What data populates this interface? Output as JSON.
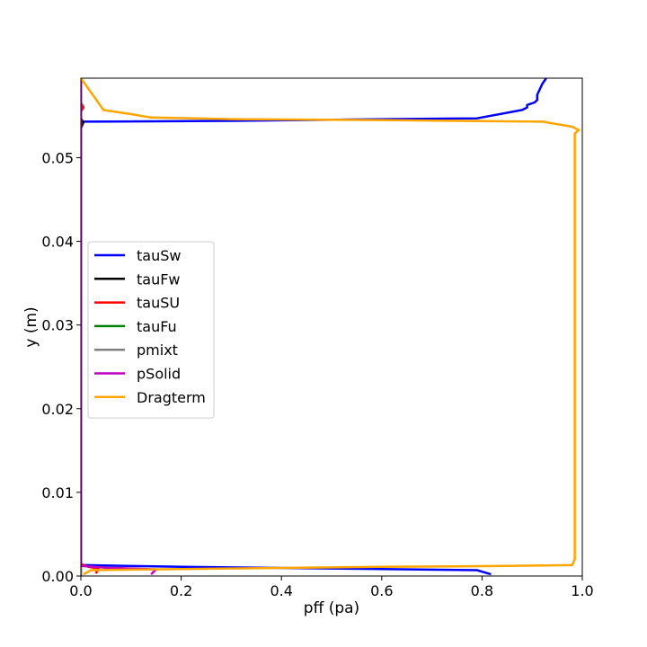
{
  "chart_data": {
    "type": "line",
    "title": "",
    "xlabel": "pff (pa)",
    "ylabel": "y (m)",
    "xlim": [
      0.0,
      1.0
    ],
    "ylim": [
      0.0,
      0.0595
    ],
    "x_ticks": [
      "0.0",
      "0.2",
      "0.4",
      "0.6",
      "0.8",
      "1.0"
    ],
    "x_tick_values": [
      0.0,
      0.2,
      0.4,
      0.6,
      0.8,
      1.0
    ],
    "y_ticks": [
      "0.00",
      "0.01",
      "0.02",
      "0.03",
      "0.04",
      "0.05"
    ],
    "y_tick_values": [
      0.0,
      0.01,
      0.02,
      0.03,
      0.04,
      0.05
    ],
    "grid": false,
    "legend_position": "center-left",
    "series": [
      {
        "name": "tauSw",
        "color": "#0000ff",
        "points": [
          [
            0.818,
            0.0002
          ],
          [
            0.79,
            0.0007
          ],
          [
            0.5,
            0.0009
          ],
          [
            0.2,
            0.0011
          ],
          [
            0.01,
            0.0013
          ],
          [
            0.0,
            0.0013
          ],
          [
            0.0,
            0.0543
          ],
          [
            0.3,
            0.0544
          ],
          [
            0.6,
            0.0546
          ],
          [
            0.79,
            0.0547
          ],
          [
            0.88,
            0.0557
          ],
          [
            0.89,
            0.056
          ],
          [
            0.89,
            0.0563
          ],
          [
            0.905,
            0.0566
          ],
          [
            0.91,
            0.0569
          ],
          [
            0.91,
            0.0575
          ],
          [
            0.92,
            0.0588
          ],
          [
            0.928,
            0.0595
          ]
        ]
      },
      {
        "name": "tauFw",
        "color": "#000000",
        "points": [
          [
            0.0,
            0.0013
          ],
          [
            0.0,
            0.0535
          ],
          [
            0.005,
            0.0542
          ],
          [
            0.0,
            0.0547
          ],
          [
            0.0,
            0.0595
          ]
        ]
      },
      {
        "name": "tauSU",
        "color": "#ff0000",
        "points": [
          [
            0.03,
            0.0003
          ],
          [
            0.035,
            0.0009
          ],
          [
            0.015,
            0.0011
          ],
          [
            0.005,
            0.0013
          ],
          [
            0.0,
            0.0015
          ],
          [
            0.0,
            0.0555
          ],
          [
            0.005,
            0.056
          ],
          [
            0.0,
            0.0566
          ]
        ]
      },
      {
        "name": "tauFu",
        "color": "#008000",
        "points": [
          [
            0.0,
            0.0
          ],
          [
            0.0,
            0.0595
          ]
        ]
      },
      {
        "name": "pmixt",
        "color": "#808080",
        "points": [
          [
            0.0,
            0.0
          ],
          [
            0.0,
            0.0595
          ]
        ]
      },
      {
        "name": "pSolid",
        "color": "#bf00bf",
        "points": [
          [
            0.14,
            0.0002
          ],
          [
            0.15,
            0.0008
          ],
          [
            0.05,
            0.001
          ],
          [
            0.0,
            0.0012
          ],
          [
            0.0,
            0.0595
          ]
        ]
      },
      {
        "name": "Dragterm",
        "color": "#ffa500",
        "points": [
          [
            0.005,
            0.0002
          ],
          [
            0.02,
            0.0007
          ],
          [
            0.3,
            0.0009
          ],
          [
            0.6,
            0.0011
          ],
          [
            0.85,
            0.0012
          ],
          [
            0.98,
            0.0013
          ],
          [
            0.985,
            0.002
          ],
          [
            0.985,
            0.0529
          ],
          [
            0.993,
            0.0533
          ],
          [
            0.98,
            0.0537
          ],
          [
            0.92,
            0.0543
          ],
          [
            0.6,
            0.0545
          ],
          [
            0.3,
            0.0546
          ],
          [
            0.14,
            0.0548
          ],
          [
            0.1,
            0.0552
          ],
          [
            0.045,
            0.0557
          ],
          [
            0.0,
            0.0595
          ]
        ]
      }
    ]
  }
}
